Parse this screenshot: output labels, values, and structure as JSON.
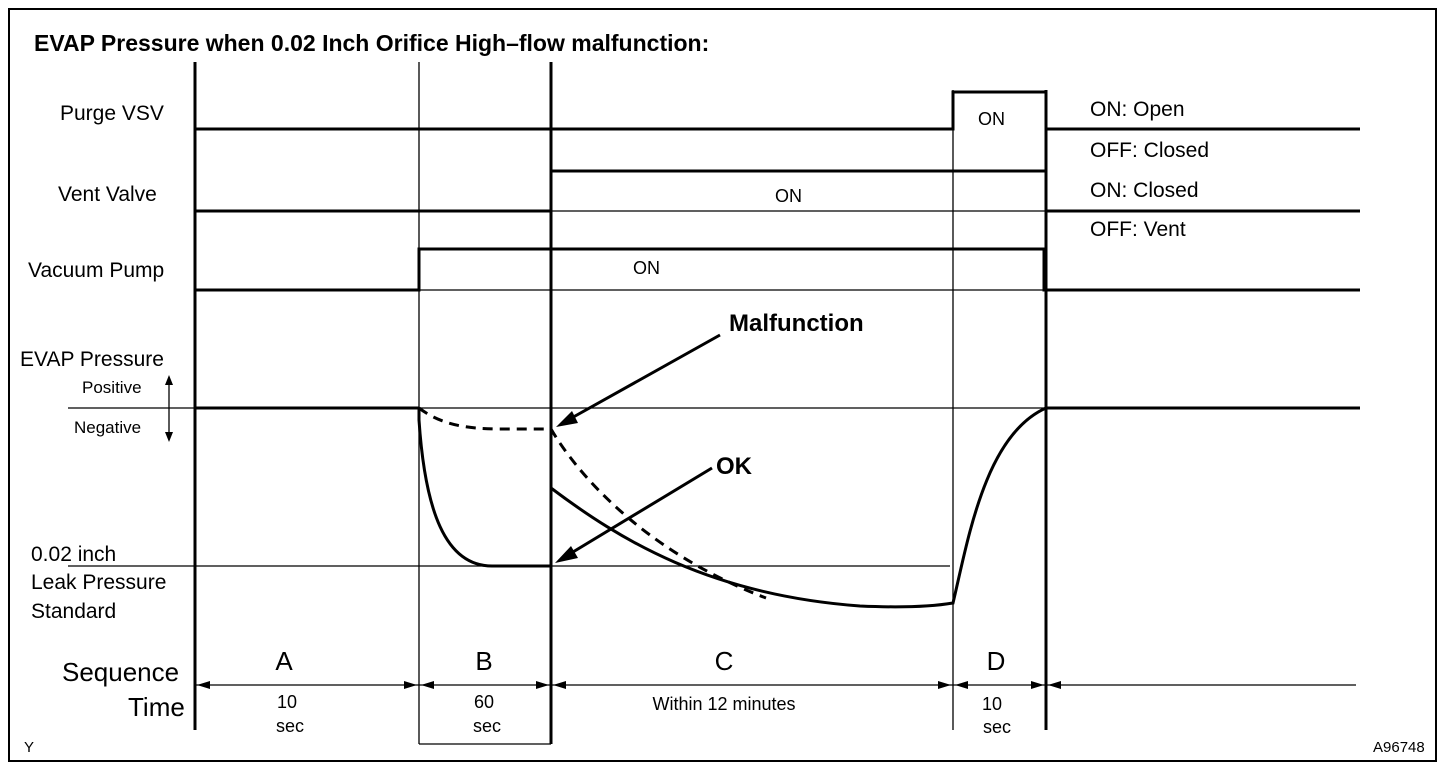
{
  "title": "EVAP Pressure when 0.02 Inch Orifice High–flow malfunction:",
  "rows": {
    "purge_vsv": {
      "label": "Purge VSV",
      "on_text": "ON",
      "legend_on": "ON: Open",
      "legend_off": "OFF: Closed"
    },
    "vent_valve": {
      "label": "Vent Valve",
      "on_text": "ON",
      "legend_on": "ON: Closed",
      "legend_off": "OFF: Vent"
    },
    "vacuum_pump": {
      "label": "Vacuum Pump",
      "on_text": "ON"
    }
  },
  "pressure": {
    "label": "EVAP Pressure",
    "positive": "Positive",
    "negative": "Negative",
    "leak_standard": [
      "0.02 inch",
      "Leak Pressure",
      "Standard"
    ]
  },
  "annotations": {
    "malfunction": "Malfunction",
    "ok": "OK"
  },
  "sequence": {
    "label": "Sequence",
    "time_label": "Time",
    "steps": [
      {
        "name": "A",
        "time": [
          "10",
          "sec"
        ]
      },
      {
        "name": "B",
        "time": [
          "60",
          "sec"
        ]
      },
      {
        "name": "C",
        "time": [
          "Within 12 minutes"
        ]
      },
      {
        "name": "D",
        "time": [
          "10",
          "sec"
        ]
      }
    ]
  },
  "corner_left": "Y",
  "figure_code": "A96748"
}
